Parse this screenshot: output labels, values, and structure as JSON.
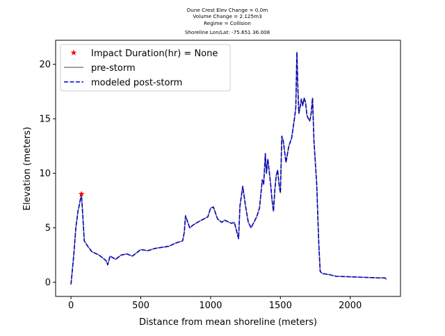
{
  "chart_data": {
    "type": "line",
    "title_lines": [
      "Dune Crest Elev Change = 0.0m",
      "Volume Change = 2.125m3",
      "Regime = Collision",
      "Shoreline Lon/Lat: -75.651 36.008"
    ],
    "xlabel": "Distance from mean shoreline (meters)",
    "ylabel": "Elevation (meters)",
    "xlim": [
      -110,
      2360
    ],
    "ylim": [
      -1.3,
      22.2
    ],
    "xticks": [
      0,
      500,
      1000,
      1500,
      2000
    ],
    "yticks": [
      0,
      5,
      10,
      15,
      20
    ],
    "grid": false,
    "legend_position": "top-left",
    "legend": [
      {
        "label": "Impact Duration(hr) = None",
        "marker": "star",
        "color": "#ff0000"
      },
      {
        "label": "pre-storm",
        "style": "solid",
        "color": "#808080"
      },
      {
        "label": "modeled post-storm",
        "style": "dashed",
        "color": "#0000cc"
      }
    ],
    "impact_point": {
      "x": 75,
      "y": 8.1
    },
    "series": [
      {
        "name": "pre-storm",
        "color": "#808080",
        "style": "solid",
        "x": [
          0,
          20,
          35,
          50,
          60,
          75,
          85,
          95,
          120,
          150,
          200,
          250,
          263,
          280,
          320,
          360,
          400,
          440,
          500,
          550,
          600,
          650,
          700,
          750,
          800,
          812,
          820,
          850,
          880,
          920,
          950,
          980,
          1000,
          1020,
          1050,
          1080,
          1100,
          1150,
          1170,
          1190,
          1200,
          1210,
          1230,
          1250,
          1270,
          1290,
          1310,
          1330,
          1350,
          1370,
          1380,
          1392,
          1400,
          1410,
          1420,
          1430,
          1440,
          1450,
          1460,
          1470,
          1480,
          1490,
          1500,
          1510,
          1520,
          1540,
          1560,
          1580,
          1600,
          1610,
          1618,
          1625,
          1632,
          1640,
          1650,
          1660,
          1670,
          1680,
          1690,
          1700,
          1710,
          1720,
          1730,
          1740,
          1750,
          1760,
          1775,
          1785,
          1800,
          1850,
          1900,
          2000,
          2100,
          2200,
          2250,
          2260
        ],
        "y": [
          -0.2,
          2.5,
          5.0,
          6.5,
          7.1,
          8.1,
          6.0,
          3.8,
          3.3,
          2.8,
          2.5,
          2.0,
          1.6,
          2.4,
          2.1,
          2.5,
          2.6,
          2.4,
          3.0,
          2.9,
          3.1,
          3.2,
          3.3,
          3.6,
          3.8,
          4.6,
          6.1,
          5.0,
          5.3,
          5.6,
          5.8,
          6.0,
          6.8,
          6.9,
          5.8,
          5.5,
          5.7,
          5.4,
          5.5,
          4.5,
          4.0,
          7.0,
          8.8,
          7.0,
          5.5,
          5.0,
          5.5,
          6.0,
          6.8,
          9.4,
          9.0,
          11.8,
          10.0,
          11.3,
          10.2,
          9.0,
          7.5,
          6.5,
          8.5,
          9.8,
          10.3,
          9.0,
          8.2,
          13.4,
          13.0,
          11.0,
          12.5,
          13.2,
          15.0,
          16.0,
          21.1,
          17.8,
          15.5,
          16.0,
          16.8,
          16.2,
          16.9,
          16.5,
          15.3,
          15.0,
          14.8,
          15.5,
          16.9,
          13.0,
          11.0,
          9.0,
          3.5,
          1.0,
          0.8,
          0.7,
          0.55,
          0.5,
          0.45,
          0.4,
          0.4,
          0.25
        ]
      },
      {
        "name": "modeled post-storm",
        "color": "#0000cc",
        "style": "dashed",
        "same_as": "pre-storm"
      }
    ]
  }
}
